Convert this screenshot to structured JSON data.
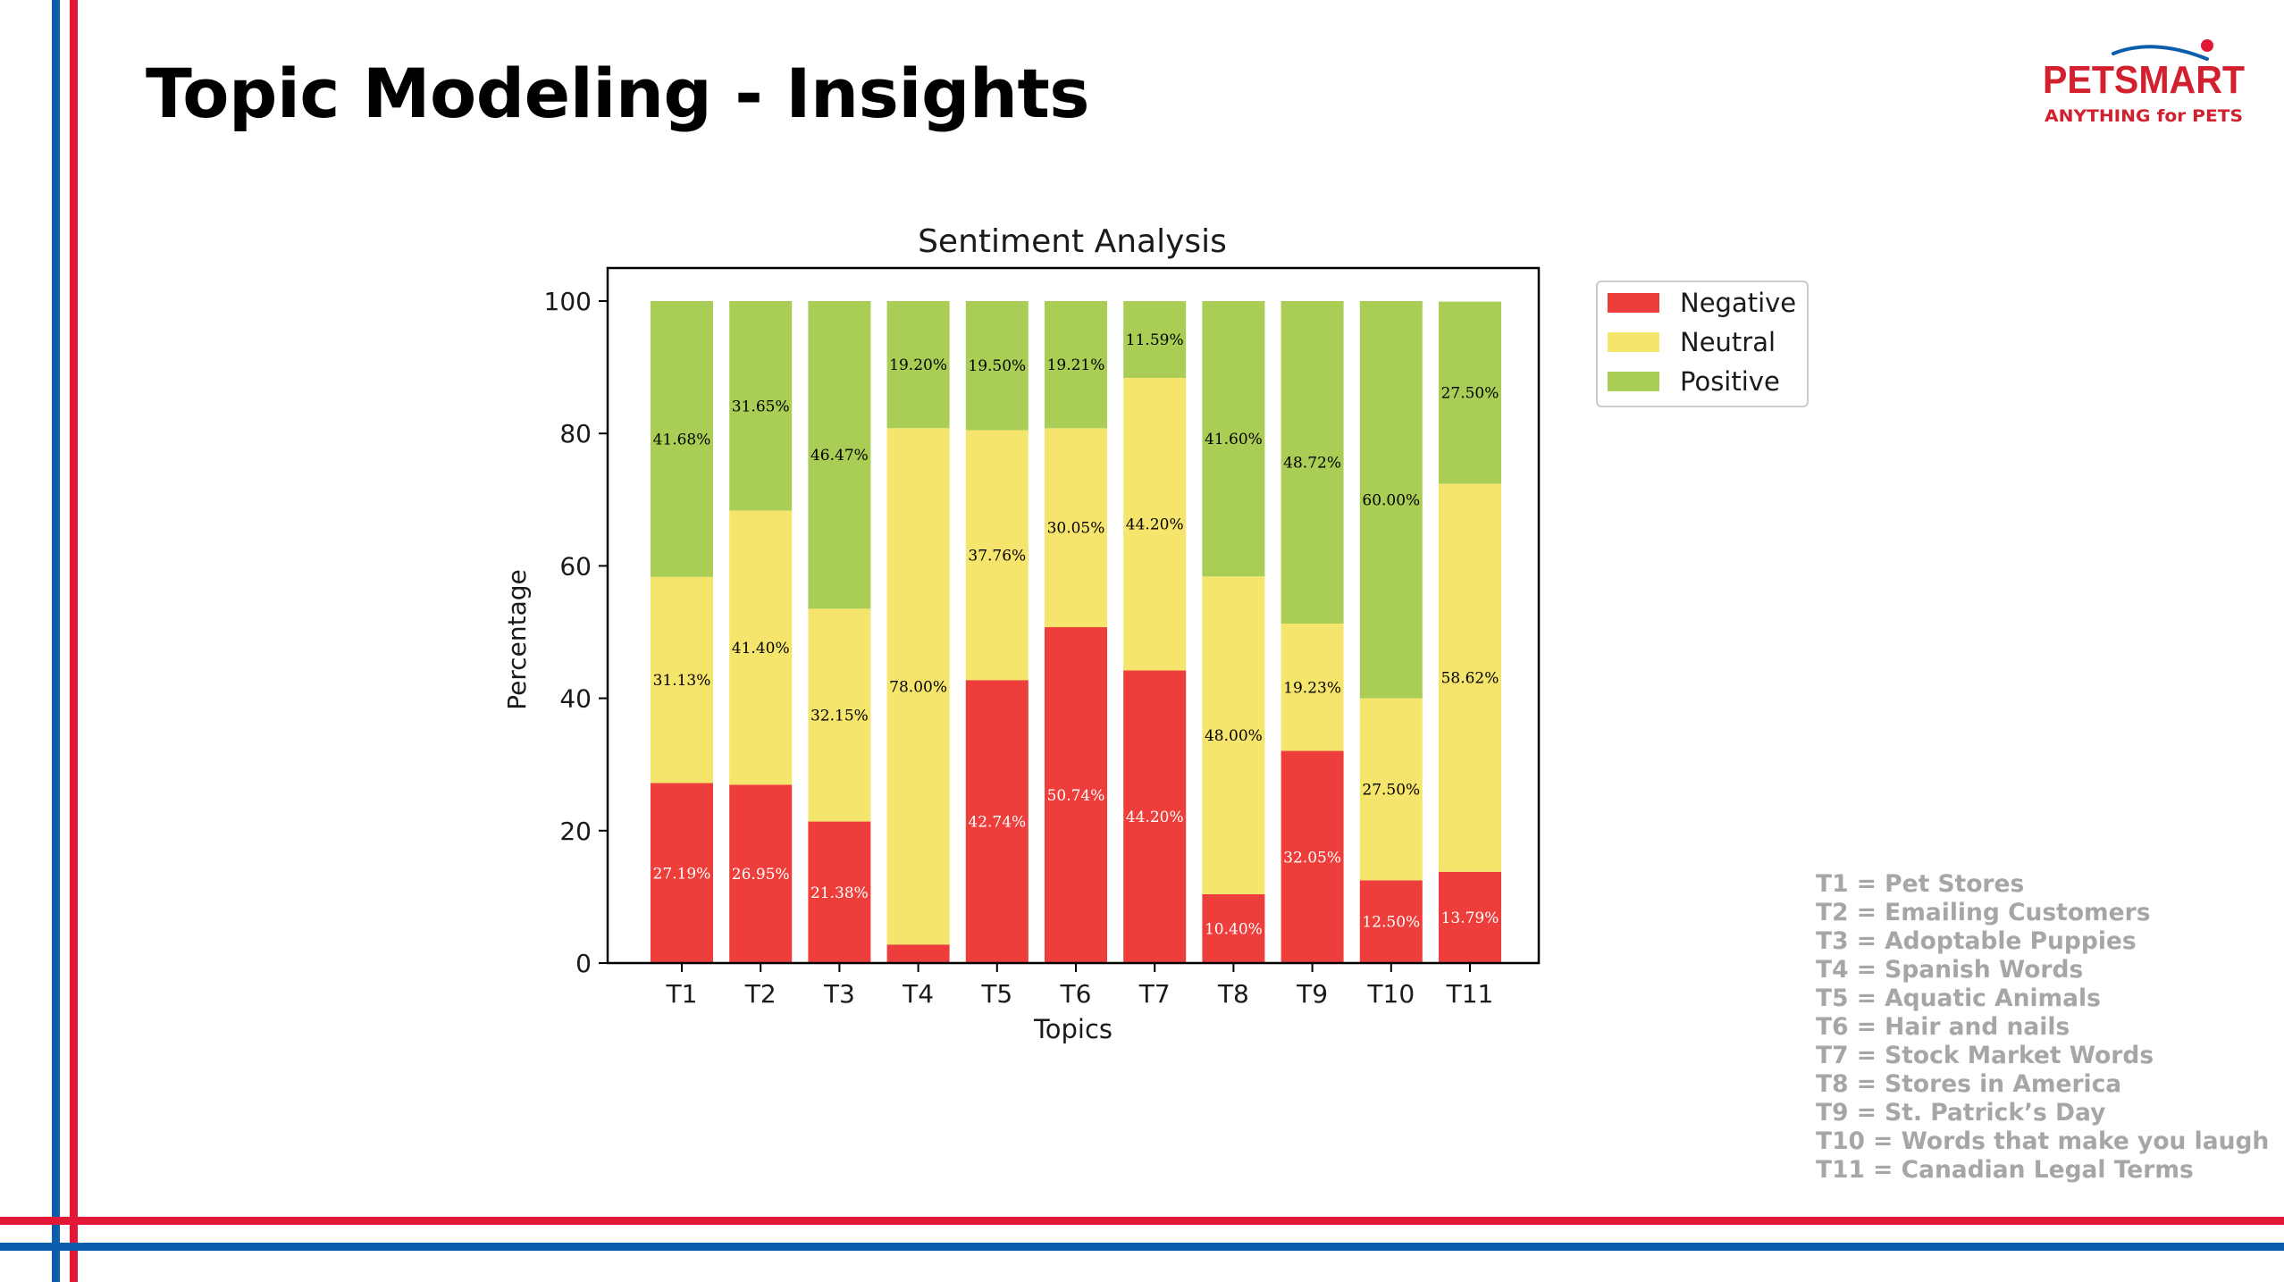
{
  "title": "Topic Modeling - Insights",
  "logo": {
    "brand": "PETSMART",
    "tagline": "ANYTHING for PETS",
    "color": "#d3202f"
  },
  "colors": {
    "border_red": "#e31837",
    "border_blue": "#0b5eab",
    "negative": "#ee3e3b",
    "neutral": "#f5e56c",
    "positive": "#aacd55",
    "legend_text": "#a6a6a6"
  },
  "chart_data": {
    "type": "bar",
    "stacked": true,
    "title": "Sentiment Analysis",
    "xlabel": "Topics",
    "ylabel": "Percentage",
    "ylim": [
      0,
      105
    ],
    "yticks": [
      0,
      20,
      40,
      60,
      80,
      100
    ],
    "grid": false,
    "legend_position": "right",
    "categories": [
      "T1",
      "T2",
      "T3",
      "T4",
      "T5",
      "T6",
      "T7",
      "T8",
      "T9",
      "T10",
      "T11"
    ],
    "series": [
      {
        "name": "Negative",
        "color": "#ee3e3b",
        "values": [
          27.19,
          26.95,
          21.38,
          2.8,
          42.74,
          50.74,
          44.2,
          10.4,
          32.05,
          12.5,
          13.79
        ],
        "labels": [
          "27.19%",
          "26.95%",
          "21.38%",
          "2.80%",
          "42.74%",
          "50.74%",
          "44.20%",
          "10.40%",
          "32.05%",
          "12.50%",
          "13.79%"
        ]
      },
      {
        "name": "Neutral",
        "color": "#f5e56c",
        "values": [
          31.13,
          41.4,
          32.15,
          78.0,
          37.76,
          30.05,
          44.2,
          48.0,
          19.23,
          27.5,
          58.62
        ],
        "labels": [
          "31.13%",
          "41.40%",
          "32.15%",
          "78.00%",
          "37.76%",
          "30.05%",
          "44.20%",
          "48.00%",
          "19.23%",
          "27.50%",
          "58.62%"
        ]
      },
      {
        "name": "Positive",
        "color": "#aacd55",
        "values": [
          41.68,
          31.65,
          46.47,
          19.2,
          19.5,
          19.21,
          11.59,
          41.6,
          48.72,
          60.0,
          27.5
        ],
        "labels": [
          "41.68%",
          "31.65%",
          "46.47%",
          "19.20%",
          "19.50%",
          "19.21%",
          "11.59%",
          "41.60%",
          "48.72%",
          "60.00%",
          "27.50%"
        ]
      }
    ]
  },
  "topic_legend": [
    "T1 = Pet Stores",
    "T2 = Emailing Customers",
    "T3 = Adoptable Puppies",
    "T4 = Spanish Words",
    "T5 = Aquatic Animals",
    "T6 = Hair and nails",
    "T7 = Stock Market Words",
    "T8 = Stores in America",
    "T9 = St. Patrick’s Day",
    "T10 = Words that make you laugh",
    "T11 = Canadian Legal Terms"
  ]
}
